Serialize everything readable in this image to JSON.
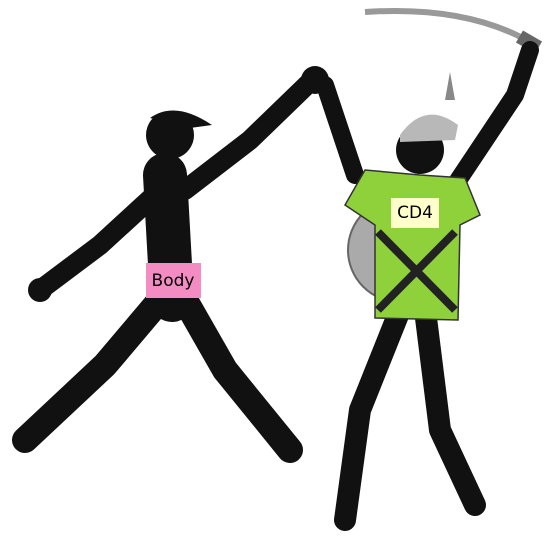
{
  "nodes": [
    {
      "label": "Body"
    },
    {
      "label": "CD4"
    }
  ]
}
